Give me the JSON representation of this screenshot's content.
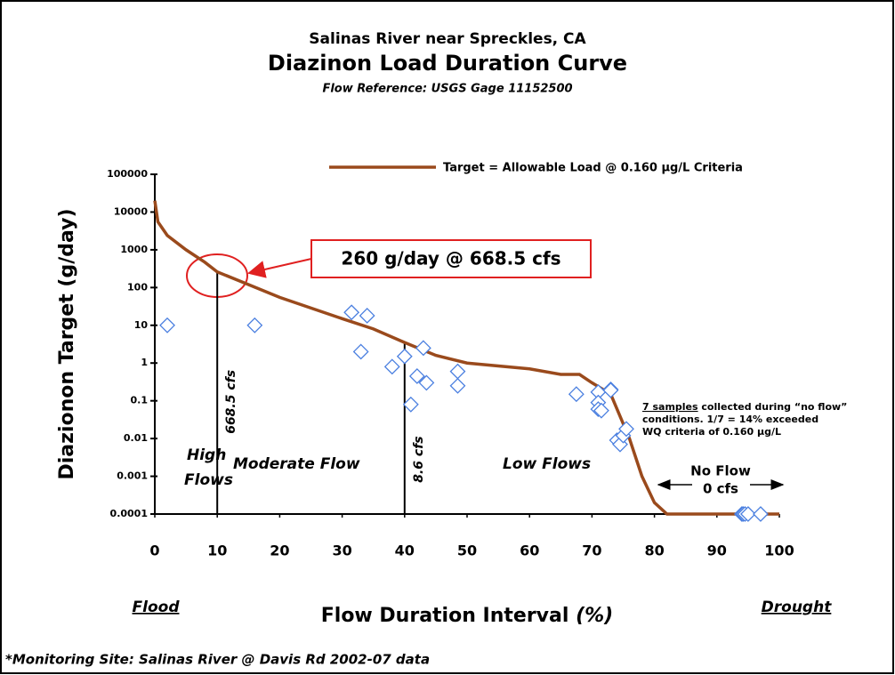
{
  "chart_data": {
    "type": "scatter",
    "title": "Salinas River near Spreckles, CA",
    "subtitle": "Diazinon Load Duration Curve",
    "flow_reference": "Flow Reference: USGS Gage  11152500",
    "xlabel": "Flow Duration Interval",
    "xlabel_unit": "(%)",
    "ylabel": "Diazionon Target (g/day)",
    "x_left_label": "Flood",
    "x_right_label": "Drought",
    "xlim": [
      0,
      100
    ],
    "xticks": [
      0,
      10,
      20,
      30,
      40,
      50,
      60,
      70,
      80,
      90,
      100
    ],
    "ylim": [
      0.0001,
      100000
    ],
    "yticks": [
      0.0001,
      0.001,
      0.01,
      0.1,
      1,
      10,
      100,
      1000,
      10000,
      100000
    ],
    "log_y": true,
    "series": [
      {
        "name": "Target = Allowable Load @ 0.160 µg/L Criteria",
        "color": "#9a4a1c",
        "kind": "line",
        "x": [
          0,
          0.5,
          2,
          5,
          8,
          10,
          15,
          20,
          30,
          35,
          40,
          45,
          50,
          60,
          65,
          68,
          70,
          73,
          76,
          78,
          80,
          82,
          100
        ],
        "values": [
          20000,
          5500,
          2400,
          1000,
          470,
          260,
          120,
          55,
          15,
          8,
          3.5,
          1.6,
          1.0,
          0.7,
          0.5,
          0.5,
          0.3,
          0.15,
          0.01,
          0.001,
          0.0002,
          0.0001,
          0.0001
        ]
      },
      {
        "color": "#4a7fe0",
        "kind": "diamond",
        "x": [
          2,
          16,
          31.5,
          34,
          33,
          38,
          40,
          41,
          42,
          43,
          43.5,
          48.5,
          48.5,
          67.5,
          71,
          71,
          71,
          71.5,
          73,
          73,
          74,
          74.5,
          75,
          75.5,
          94,
          94.2,
          94.5,
          95,
          97
        ],
        "values": [
          10,
          10,
          22,
          18,
          2,
          0.8,
          1.5,
          0.08,
          0.45,
          2.5,
          0.3,
          0.6,
          0.25,
          0.15,
          0.17,
          0.09,
          0.06,
          0.055,
          0.2,
          0.19,
          0.009,
          0.007,
          0.012,
          0.018,
          0.0001,
          0.0001,
          0.0001,
          0.0001,
          0.0001
        ]
      }
    ],
    "reference_lines": [
      {
        "x": 10,
        "y": 260,
        "label": "668.5 cfs"
      },
      {
        "x": 40,
        "y": 3.5,
        "label": "8.6 cfs"
      }
    ],
    "callout": "260 g/day @ 668.5 cfs",
    "regions": {
      "high": [
        "High",
        "Flows"
      ],
      "moderate": "Moderate Flow",
      "low": "Low Flows",
      "none": "No Flow",
      "none_flow": "0 cfs"
    },
    "note": {
      "underlined": "7 samples",
      "first": " collected during “no flow”",
      "lines": [
        "conditions.  1/7 = 14% exceeded",
        "WQ criteria of 0.160 µg/L"
      ]
    },
    "footer": "*Monitoring Site: Salinas River @ Davis Rd 2002-07 data"
  }
}
